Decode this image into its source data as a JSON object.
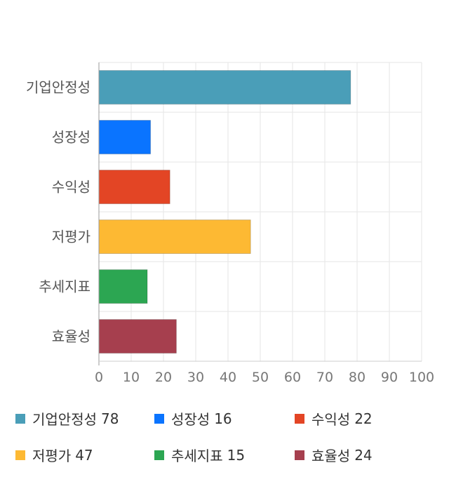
{
  "chart_data": {
    "type": "bar",
    "orientation": "horizontal",
    "categories": [
      "기업안정성",
      "성장성",
      "수익성",
      "저평가",
      "추세지표",
      "효율성"
    ],
    "values": [
      78,
      16,
      22,
      47,
      15,
      24
    ],
    "colors": [
      "#4a9eb8",
      "#0a74ff",
      "#e34525",
      "#fdb933",
      "#2ca652",
      "#a63f4e"
    ],
    "xlim": [
      0,
      100
    ],
    "xticks": [
      0,
      10,
      20,
      30,
      40,
      50,
      60,
      70,
      80,
      90,
      100
    ],
    "grid": true,
    "legend_position": "bottom"
  },
  "legend": [
    {
      "label": "기업안정성",
      "value": "78",
      "color": "#4a9eb8"
    },
    {
      "label": "성장성",
      "value": "16",
      "color": "#0a74ff"
    },
    {
      "label": "수익성",
      "value": "22",
      "color": "#e34525"
    },
    {
      "label": "저평가",
      "value": "47",
      "color": "#fdb933"
    },
    {
      "label": "추세지표",
      "value": "15",
      "color": "#2ca652"
    },
    {
      "label": "효율성",
      "value": "24",
      "color": "#a63f4e"
    }
  ]
}
